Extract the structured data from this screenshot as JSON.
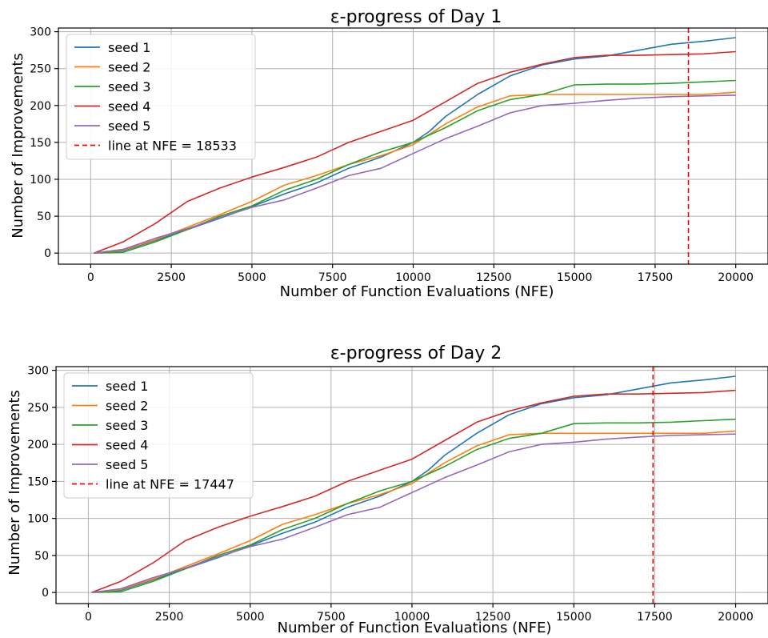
{
  "chart_data": [
    {
      "type": "line",
      "title": "ε-progress of Day 1",
      "xlabel": "Number of Function Evaluations (NFE)",
      "ylabel": "Number of Improvements",
      "xlim": [
        -1000,
        21000
      ],
      "ylim": [
        -15,
        305
      ],
      "xticks": [
        0,
        2500,
        5000,
        7500,
        10000,
        12500,
        15000,
        17500,
        20000
      ],
      "yticks": [
        0,
        50,
        100,
        150,
        200,
        250,
        300
      ],
      "grid": true,
      "legend_position": "top-left",
      "series": [
        {
          "name": "seed 1",
          "color": "#1f77b4",
          "x": [
            100,
            1000,
            2000,
            3000,
            4000,
            5000,
            6000,
            7000,
            8000,
            9000,
            10000,
            10500,
            11000,
            12000,
            13000,
            14000,
            15000,
            16000,
            17000,
            18000,
            19000,
            20000
          ],
          "y": [
            0,
            3,
            17,
            32,
            47,
            63,
            80,
            95,
            115,
            130,
            150,
            165,
            185,
            215,
            240,
            255,
            263,
            267,
            275,
            283,
            287,
            292
          ]
        },
        {
          "name": "seed 2",
          "color": "#ff7f0e",
          "x": [
            100,
            1000,
            2000,
            3000,
            4000,
            5000,
            6000,
            7000,
            8000,
            9000,
            10000,
            11000,
            12000,
            13000,
            14000,
            15000,
            16000,
            17000,
            18000,
            19000,
            20000
          ],
          "y": [
            0,
            4,
            18,
            35,
            52,
            70,
            92,
            105,
            120,
            132,
            147,
            175,
            198,
            213,
            215,
            215,
            215,
            215,
            215,
            215,
            218
          ]
        },
        {
          "name": "seed 3",
          "color": "#2ca02c",
          "x": [
            100,
            1000,
            2000,
            3000,
            4000,
            5000,
            6000,
            7000,
            8000,
            9000,
            10000,
            11000,
            12000,
            13000,
            14000,
            15000,
            16000,
            17000,
            18000,
            19000,
            20000
          ],
          "y": [
            0,
            1,
            15,
            32,
            50,
            64,
            85,
            100,
            120,
            137,
            150,
            170,
            193,
            208,
            215,
            228,
            229,
            229,
            230,
            232,
            234
          ]
        },
        {
          "name": "seed 4",
          "color": "#d62728",
          "x": [
            100,
            1000,
            2000,
            3000,
            4000,
            5000,
            6000,
            7000,
            8000,
            9000,
            10000,
            11000,
            12000,
            13000,
            14000,
            15000,
            16000,
            17000,
            18000,
            19000,
            20000
          ],
          "y": [
            0,
            15,
            40,
            70,
            88,
            103,
            116,
            130,
            150,
            165,
            180,
            205,
            230,
            245,
            256,
            265,
            268,
            268,
            269,
            270,
            273
          ]
        },
        {
          "name": "seed 5",
          "color": "#9467bd",
          "x": [
            100,
            1000,
            2000,
            3000,
            4000,
            5000,
            6000,
            7000,
            8000,
            9000,
            10000,
            11000,
            12000,
            13000,
            14000,
            15000,
            16000,
            17000,
            18000,
            19000,
            20000
          ],
          "y": [
            0,
            5,
            20,
            33,
            48,
            62,
            72,
            88,
            105,
            115,
            135,
            155,
            172,
            190,
            200,
            203,
            207,
            210,
            212,
            213,
            214
          ]
        }
      ],
      "reference_line": {
        "label": "line at NFE = 18533",
        "x": 18533,
        "color": "#ff0000",
        "style": "dashed"
      }
    },
    {
      "type": "line",
      "title": "ε-progress of Day 2",
      "xlabel": "Number of Function Evaluations (NFE)",
      "ylabel": "Number of Improvements",
      "xlim": [
        -1000,
        21000
      ],
      "ylim": [
        -15,
        305
      ],
      "xticks": [
        0,
        2500,
        5000,
        7500,
        10000,
        12500,
        15000,
        17500,
        20000
      ],
      "yticks": [
        0,
        50,
        100,
        150,
        200,
        250,
        300
      ],
      "grid": true,
      "legend_position": "top-left",
      "series": [
        {
          "name": "seed 1",
          "color": "#1f77b4",
          "x": [
            100,
            1000,
            2000,
            3000,
            4000,
            5000,
            6000,
            7000,
            8000,
            9000,
            10000,
            10500,
            11000,
            12000,
            13000,
            14000,
            15000,
            16000,
            17000,
            18000,
            19000,
            20000
          ],
          "y": [
            0,
            3,
            17,
            32,
            47,
            63,
            80,
            95,
            115,
            130,
            150,
            165,
            185,
            215,
            240,
            255,
            263,
            267,
            275,
            283,
            287,
            292
          ]
        },
        {
          "name": "seed 2",
          "color": "#ff7f0e",
          "x": [
            100,
            1000,
            2000,
            3000,
            4000,
            5000,
            6000,
            7000,
            8000,
            9000,
            10000,
            11000,
            12000,
            13000,
            14000,
            15000,
            16000,
            17000,
            18000,
            19000,
            20000
          ],
          "y": [
            0,
            4,
            18,
            35,
            52,
            70,
            92,
            105,
            120,
            132,
            147,
            175,
            198,
            213,
            215,
            215,
            215,
            215,
            215,
            215,
            218
          ]
        },
        {
          "name": "seed 3",
          "color": "#2ca02c",
          "x": [
            100,
            1000,
            2000,
            3000,
            4000,
            5000,
            6000,
            7000,
            8000,
            9000,
            10000,
            11000,
            12000,
            13000,
            14000,
            15000,
            16000,
            17000,
            18000,
            19000,
            20000
          ],
          "y": [
            0,
            1,
            15,
            32,
            50,
            64,
            85,
            100,
            120,
            137,
            150,
            170,
            193,
            208,
            215,
            228,
            229,
            229,
            230,
            232,
            234
          ]
        },
        {
          "name": "seed 4",
          "color": "#d62728",
          "x": [
            100,
            1000,
            2000,
            3000,
            4000,
            5000,
            6000,
            7000,
            8000,
            9000,
            10000,
            11000,
            12000,
            13000,
            14000,
            15000,
            16000,
            17000,
            18000,
            19000,
            20000
          ],
          "y": [
            0,
            15,
            40,
            70,
            88,
            103,
            116,
            130,
            150,
            165,
            180,
            205,
            230,
            245,
            256,
            265,
            268,
            268,
            269,
            270,
            273
          ]
        },
        {
          "name": "seed 5",
          "color": "#9467bd",
          "x": [
            100,
            1000,
            2000,
            3000,
            4000,
            5000,
            6000,
            7000,
            8000,
            9000,
            10000,
            11000,
            12000,
            13000,
            14000,
            15000,
            16000,
            17000,
            18000,
            19000,
            20000
          ],
          "y": [
            0,
            5,
            20,
            33,
            48,
            62,
            72,
            88,
            105,
            115,
            135,
            155,
            172,
            190,
            200,
            203,
            207,
            210,
            212,
            213,
            214
          ]
        }
      ],
      "reference_line": {
        "label": "line at NFE = 17447",
        "x": 17447,
        "color": "#ff0000",
        "style": "dashed"
      }
    }
  ]
}
